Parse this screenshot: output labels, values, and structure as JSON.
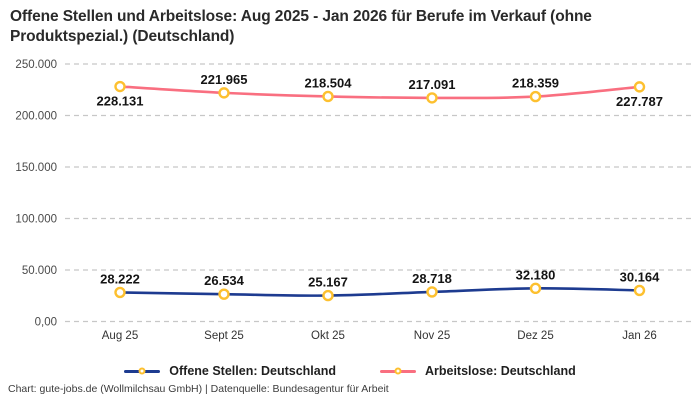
{
  "title": "Offene Stellen und Arbeitslose: Aug 2025 - Jan 2026 für Berufe im Verkauf (ohne Produktspezial.) (Deutschland)",
  "footer": "Chart: gute-jobs.de (Wollmilchsau GmbH) | Datenquelle: Bundesagentur für Arbeit",
  "colors": {
    "offene_stellen": "#1d3b90",
    "arbeitslose": "#f96f80",
    "marker": "#fdc02f",
    "grid": "#c7c7c7",
    "data_label": "#141414",
    "axis_text": "#4a4a4a",
    "x_axis_text": "#333333"
  },
  "chart_data": {
    "type": "line",
    "categories": [
      "Aug 25",
      "Sept 25",
      "Okt 25",
      "Nov 25",
      "Dez 25",
      "Jan 26"
    ],
    "series": [
      {
        "name": "Offene Stellen: Deutschland",
        "color_key": "offene_stellen",
        "values": [
          28222,
          26534,
          25167,
          28718,
          32180,
          30164
        ],
        "label_position": [
          "above",
          "above",
          "above",
          "above",
          "above",
          "above"
        ]
      },
      {
        "name": "Arbeitslose: Deutschland",
        "color_key": "arbeitslose",
        "values": [
          228131,
          221965,
          218504,
          217091,
          218359,
          227787
        ],
        "label_position": [
          "below",
          "above",
          "above",
          "above",
          "above",
          "below"
        ]
      }
    ],
    "ylim": [
      0,
      250000
    ],
    "y_ticks": [
      {
        "value": 0,
        "label": "0,00"
      },
      {
        "value": 50000,
        "label": "50.000"
      },
      {
        "value": 100000,
        "label": "100.000"
      },
      {
        "value": 150000,
        "label": "150.000"
      },
      {
        "value": 200000,
        "label": "200.000"
      },
      {
        "value": 250000,
        "label": "250.000"
      }
    ],
    "grid": "dashed-horizontal",
    "legend_position": "bottom",
    "marker_style": "open-circle-yellow"
  },
  "legend": {
    "items": [
      {
        "label": "Offene Stellen: Deutschland",
        "color_key": "offene_stellen"
      },
      {
        "label": "Arbeitslose: Deutschland",
        "color_key": "arbeitslose"
      }
    ]
  }
}
